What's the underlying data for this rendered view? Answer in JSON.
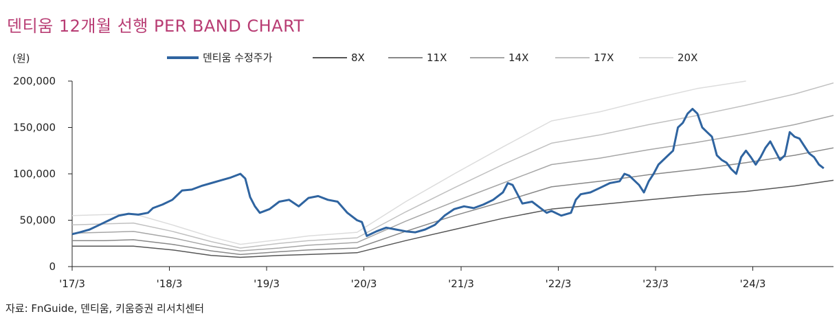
{
  "title": "덴티움 12개월 선행 PER BAND CHART",
  "source": "자료: FnGuide, 덴티움, 키움증권 리서치센터",
  "chart_data": {
    "type": "line",
    "title": "덴티움 12개월 선행 PER BAND CHART",
    "ylabel": "(원)",
    "xlabel": "",
    "ylim": [
      0,
      200000
    ],
    "xlim": [
      2017.17,
      2025.0
    ],
    "y_ticks": [
      {
        "value": 0,
        "label": "0"
      },
      {
        "value": 50000,
        "label": "50,000"
      },
      {
        "value": 100000,
        "label": "100,000"
      },
      {
        "value": 150000,
        "label": "150,000"
      },
      {
        "value": 200000,
        "label": "200,000"
      }
    ],
    "x_ticks": [
      {
        "value": 2017.17,
        "label": "'17/3"
      },
      {
        "value": 2018.17,
        "label": "'18/3"
      },
      {
        "value": 2019.17,
        "label": "'19/3"
      },
      {
        "value": 2020.17,
        "label": "'20/3"
      },
      {
        "value": 2021.17,
        "label": "'21/3"
      },
      {
        "value": 2022.17,
        "label": "'22/3"
      },
      {
        "value": 2023.17,
        "label": "'23/3"
      },
      {
        "value": 2024.17,
        "label": "'24/3"
      }
    ],
    "series": [
      {
        "name": "덴티움 수정주가",
        "color": "#2f64a0",
        "width": 3,
        "points": [
          [
            2017.17,
            35000
          ],
          [
            2017.25,
            37000
          ],
          [
            2017.35,
            40000
          ],
          [
            2017.45,
            45000
          ],
          [
            2017.55,
            50000
          ],
          [
            2017.65,
            55000
          ],
          [
            2017.75,
            57000
          ],
          [
            2017.85,
            56000
          ],
          [
            2017.95,
            58000
          ],
          [
            2018.0,
            63000
          ],
          [
            2018.1,
            67000
          ],
          [
            2018.2,
            72000
          ],
          [
            2018.3,
            82000
          ],
          [
            2018.4,
            83000
          ],
          [
            2018.5,
            87000
          ],
          [
            2018.6,
            90000
          ],
          [
            2018.7,
            93000
          ],
          [
            2018.8,
            96000
          ],
          [
            2018.9,
            100000
          ],
          [
            2018.95,
            95000
          ],
          [
            2019.0,
            75000
          ],
          [
            2019.05,
            65000
          ],
          [
            2019.1,
            58000
          ],
          [
            2019.2,
            62000
          ],
          [
            2019.3,
            70000
          ],
          [
            2019.4,
            72000
          ],
          [
            2019.5,
            65000
          ],
          [
            2019.6,
            74000
          ],
          [
            2019.7,
            76000
          ],
          [
            2019.8,
            72000
          ],
          [
            2019.9,
            70000
          ],
          [
            2020.0,
            58000
          ],
          [
            2020.1,
            50000
          ],
          [
            2020.15,
            48000
          ],
          [
            2020.2,
            33000
          ],
          [
            2020.3,
            38000
          ],
          [
            2020.4,
            42000
          ],
          [
            2020.5,
            40000
          ],
          [
            2020.6,
            38000
          ],
          [
            2020.7,
            37000
          ],
          [
            2020.8,
            40000
          ],
          [
            2020.9,
            45000
          ],
          [
            2021.0,
            55000
          ],
          [
            2021.1,
            62000
          ],
          [
            2021.2,
            65000
          ],
          [
            2021.3,
            63000
          ],
          [
            2021.4,
            67000
          ],
          [
            2021.5,
            72000
          ],
          [
            2021.6,
            80000
          ],
          [
            2021.65,
            90000
          ],
          [
            2021.7,
            88000
          ],
          [
            2021.8,
            68000
          ],
          [
            2021.9,
            70000
          ],
          [
            2022.0,
            62000
          ],
          [
            2022.05,
            58000
          ],
          [
            2022.1,
            60000
          ],
          [
            2022.2,
            55000
          ],
          [
            2022.3,
            58000
          ],
          [
            2022.35,
            72000
          ],
          [
            2022.4,
            78000
          ],
          [
            2022.5,
            80000
          ],
          [
            2022.6,
            85000
          ],
          [
            2022.7,
            90000
          ],
          [
            2022.8,
            92000
          ],
          [
            2022.85,
            100000
          ],
          [
            2022.9,
            98000
          ],
          [
            2023.0,
            88000
          ],
          [
            2023.05,
            80000
          ],
          [
            2023.1,
            92000
          ],
          [
            2023.15,
            100000
          ],
          [
            2023.2,
            110000
          ],
          [
            2023.3,
            120000
          ],
          [
            2023.35,
            125000
          ],
          [
            2023.4,
            150000
          ],
          [
            2023.45,
            155000
          ],
          [
            2023.5,
            165000
          ],
          [
            2023.55,
            170000
          ],
          [
            2023.6,
            165000
          ],
          [
            2023.65,
            150000
          ],
          [
            2023.7,
            145000
          ],
          [
            2023.75,
            140000
          ],
          [
            2023.8,
            120000
          ],
          [
            2023.85,
            115000
          ],
          [
            2023.9,
            112000
          ],
          [
            2023.95,
            105000
          ],
          [
            2024.0,
            100000
          ],
          [
            2024.05,
            118000
          ],
          [
            2024.1,
            125000
          ],
          [
            2024.15,
            118000
          ],
          [
            2024.2,
            110000
          ],
          [
            2024.25,
            118000
          ],
          [
            2024.3,
            128000
          ],
          [
            2024.35,
            135000
          ],
          [
            2024.4,
            125000
          ],
          [
            2024.45,
            115000
          ],
          [
            2024.5,
            120000
          ],
          [
            2024.55,
            145000
          ],
          [
            2024.6,
            140000
          ],
          [
            2024.65,
            138000
          ],
          [
            2024.7,
            130000
          ],
          [
            2024.75,
            122000
          ],
          [
            2024.8,
            118000
          ],
          [
            2024.85,
            110000
          ],
          [
            2024.9,
            106000
          ]
        ]
      },
      {
        "name": "8X",
        "color": "#555555",
        "width": 1.5,
        "points": [
          [
            2017.17,
            22000
          ],
          [
            2017.5,
            22000
          ],
          [
            2017.8,
            22000
          ],
          [
            2018.2,
            18000
          ],
          [
            2018.6,
            12000
          ],
          [
            2018.9,
            10000
          ],
          [
            2019.3,
            12000
          ],
          [
            2019.6,
            13000
          ],
          [
            2020.1,
            15000
          ],
          [
            2020.6,
            28000
          ],
          [
            2021.1,
            40000
          ],
          [
            2021.6,
            52000
          ],
          [
            2022.1,
            62000
          ],
          [
            2022.6,
            67000
          ],
          [
            2023.1,
            72000
          ],
          [
            2023.6,
            77000
          ],
          [
            2024.1,
            81000
          ],
          [
            2024.6,
            87000
          ],
          [
            2025.0,
            93000
          ]
        ]
      },
      {
        "name": "11X",
        "color": "#888888",
        "width": 1.5,
        "points": [
          [
            2017.17,
            28000
          ],
          [
            2017.5,
            28000
          ],
          [
            2017.8,
            29000
          ],
          [
            2018.2,
            24000
          ],
          [
            2018.6,
            17000
          ],
          [
            2018.9,
            13000
          ],
          [
            2019.3,
            16000
          ],
          [
            2019.6,
            18000
          ],
          [
            2020.1,
            20000
          ],
          [
            2020.6,
            38000
          ],
          [
            2021.1,
            55000
          ],
          [
            2021.6,
            70000
          ],
          [
            2022.1,
            86000
          ],
          [
            2022.6,
            92000
          ],
          [
            2023.1,
            99000
          ],
          [
            2023.6,
            105000
          ],
          [
            2024.1,
            112000
          ],
          [
            2024.6,
            120000
          ],
          [
            2025.0,
            128000
          ]
        ]
      },
      {
        "name": "14X",
        "color": "#a6a6a6",
        "width": 1.5,
        "points": [
          [
            2017.17,
            36000
          ],
          [
            2017.5,
            37000
          ],
          [
            2017.8,
            38000
          ],
          [
            2018.2,
            31000
          ],
          [
            2018.6,
            22000
          ],
          [
            2018.9,
            17000
          ],
          [
            2019.3,
            20000
          ],
          [
            2019.6,
            23000
          ],
          [
            2020.1,
            26000
          ],
          [
            2020.6,
            49000
          ],
          [
            2021.1,
            70000
          ],
          [
            2021.6,
            90000
          ],
          [
            2022.1,
            110000
          ],
          [
            2022.6,
            117000
          ],
          [
            2023.1,
            126000
          ],
          [
            2023.6,
            134000
          ],
          [
            2024.1,
            143000
          ],
          [
            2024.6,
            153000
          ],
          [
            2025.0,
            163000
          ]
        ]
      },
      {
        "name": "17X",
        "color": "#c0c0c0",
        "width": 1.5,
        "points": [
          [
            2017.17,
            45000
          ],
          [
            2017.5,
            46000
          ],
          [
            2017.8,
            47000
          ],
          [
            2018.2,
            38000
          ],
          [
            2018.6,
            27000
          ],
          [
            2018.9,
            20000
          ],
          [
            2019.3,
            25000
          ],
          [
            2019.6,
            28000
          ],
          [
            2020.1,
            31000
          ],
          [
            2020.6,
            59000
          ],
          [
            2021.1,
            85000
          ],
          [
            2021.6,
            110000
          ],
          [
            2022.1,
            133000
          ],
          [
            2022.6,
            142000
          ],
          [
            2023.1,
            153000
          ],
          [
            2023.6,
            163000
          ],
          [
            2024.1,
            174000
          ],
          [
            2024.6,
            186000
          ],
          [
            2025.0,
            198000
          ]
        ]
      },
      {
        "name": "20X",
        "color": "#dcdcdc",
        "width": 1.5,
        "points": [
          [
            2017.17,
            55000
          ],
          [
            2017.5,
            56000
          ],
          [
            2017.8,
            57000
          ],
          [
            2018.2,
            45000
          ],
          [
            2018.6,
            32000
          ],
          [
            2018.9,
            24000
          ],
          [
            2019.3,
            29000
          ],
          [
            2019.6,
            33000
          ],
          [
            2020.1,
            37000
          ],
          [
            2020.6,
            70000
          ],
          [
            2021.1,
            100000
          ],
          [
            2021.6,
            129000
          ],
          [
            2022.1,
            157000
          ],
          [
            2022.6,
            167000
          ],
          [
            2023.1,
            180000
          ],
          [
            2023.6,
            192000
          ],
          [
            2024.1,
            200000
          ]
        ]
      }
    ]
  }
}
